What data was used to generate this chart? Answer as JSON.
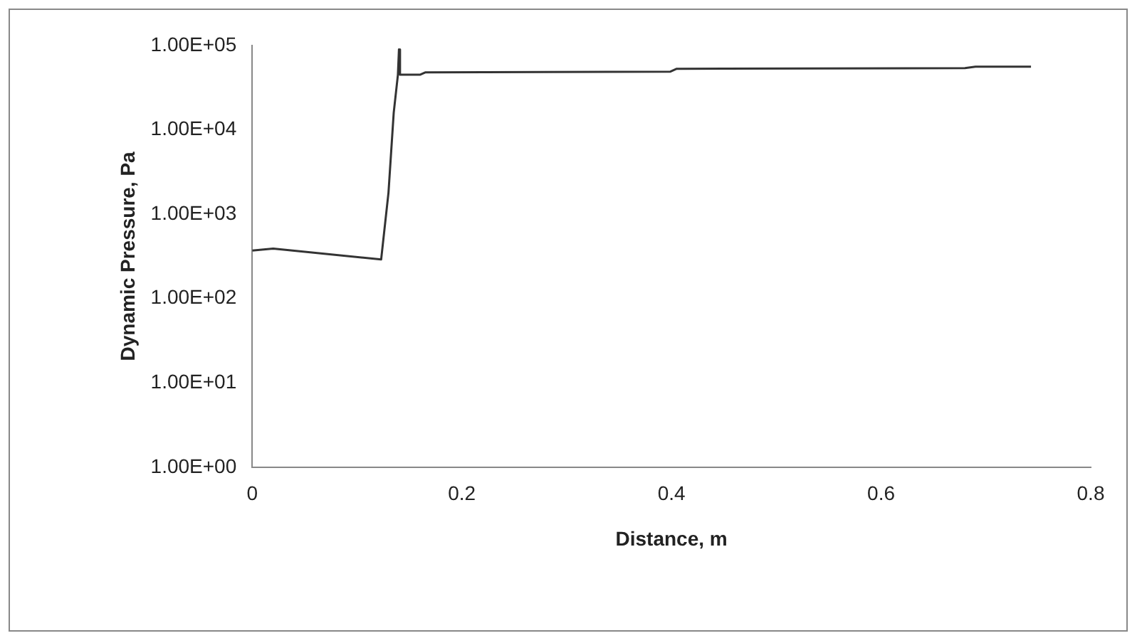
{
  "chart_data": {
    "type": "line",
    "xlabel": "Distance, m",
    "ylabel": "Dynamic Pressure, Pa",
    "x": [
      0,
      0.02,
      0.123,
      0.13,
      0.135,
      0.139,
      0.14,
      0.141,
      0.16,
      0.165,
      0.399,
      0.405,
      0.68,
      0.69,
      0.743
    ],
    "series": [
      {
        "color": "#333333",
        "values": [
          370,
          390,
          290,
          1800,
          16000,
          45000,
          90000,
          45000,
          45000,
          48000,
          49000,
          53000,
          54000,
          56000,
          56000
        ]
      }
    ],
    "log": "y",
    "xlim": [
      0,
      0.8
    ],
    "xticks": [
      0,
      0.2,
      0.4,
      0.6,
      0.8
    ],
    "ylim": [
      1,
      100000
    ],
    "yticks": [
      {
        "value": 1,
        "label": "1.00E+00"
      },
      {
        "value": 10,
        "label": "1.00E+01"
      },
      {
        "value": 100,
        "label": "1.00E+02"
      },
      {
        "value": 1000,
        "label": "1.00E+03"
      },
      {
        "value": 10000,
        "label": "1.00E+04"
      },
      {
        "value": 100000,
        "label": "1.00E+05"
      }
    ],
    "grid": false,
    "legend": false,
    "marker": "none",
    "line_style": "solid"
  }
}
